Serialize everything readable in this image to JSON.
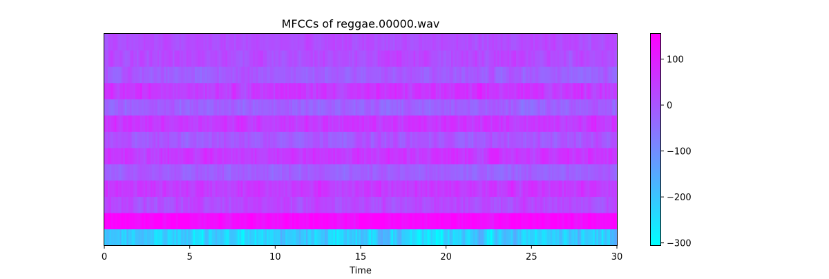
{
  "chart_data": {
    "type": "heatmap",
    "title": "MFCCs of reggae.00000.wav",
    "xlabel": "Time",
    "ylabel": "",
    "xlim": [
      0,
      30
    ],
    "x_ticks": [
      0,
      5,
      10,
      15,
      20,
      25,
      30
    ],
    "n_coefficients": 13,
    "n_frames": 300,
    "colormap": "cool",
    "colormap_stops": [
      "#00ffff",
      "#ff00ff"
    ],
    "colorbar": {
      "vmin": -305,
      "vmax": 155,
      "ticks": [
        100,
        0,
        -100,
        -200,
        -300
      ],
      "tick_labels": [
        "100",
        "0",
        "−100",
        "−200",
        "−300"
      ]
    },
    "coefficient_means": [
      -220,
      140,
      20,
      50,
      -20,
      55,
      0,
      55,
      -20,
      55,
      -10,
      20,
      15
    ],
    "coefficient_variation": [
      50,
      18,
      22,
      22,
      20,
      22,
      22,
      22,
      22,
      25,
      22,
      22,
      18
    ],
    "grid": false
  }
}
